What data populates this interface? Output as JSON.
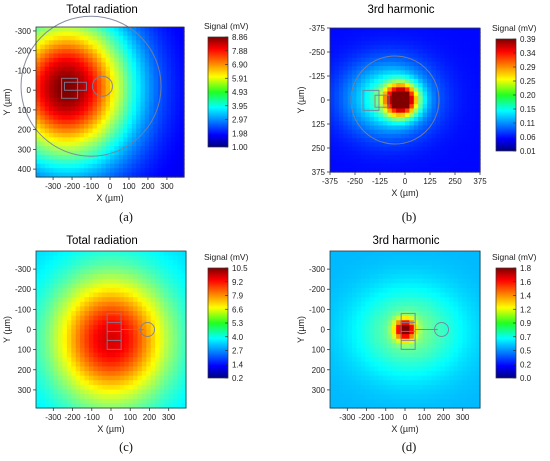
{
  "chart_data": [
    {
      "type": "heatmap",
      "panel_label": "(a)",
      "title": "Total radiation",
      "xlabel": "X (µm)",
      "ylabel": "Y (µm)",
      "xlim": [
        -390,
        390
      ],
      "ylim": [
        -320,
        440
      ],
      "y_inverted": true,
      "x_ticks": [
        "-300",
        "-200",
        "-100",
        "0",
        "100",
        "200",
        "300"
      ],
      "x_tick_values": [
        -300,
        -200,
        -100,
        0,
        100,
        200,
        300
      ],
      "y_ticks": [
        "-300",
        "-200",
        "-100",
        "0",
        "100",
        "200",
        "300",
        "400"
      ],
      "y_tick_values": [
        -300,
        -200,
        -100,
        0,
        100,
        200,
        300,
        400
      ],
      "colorbar_label": "Signal (mV)",
      "colorbar_ticks": [
        "8.86",
        "7.88",
        "6.90",
        "5.91",
        "4.93",
        "3.95",
        "2.97",
        "1.98",
        "1.00"
      ],
      "vmin": 1.0,
      "vmax": 8.86,
      "field": {
        "background": 1.8,
        "peaks": [
          {
            "x": -230,
            "y": -10,
            "amp": 7.1,
            "sx": 240,
            "sy": 260
          }
        ]
      }
    },
    {
      "type": "heatmap",
      "panel_label": "(b)",
      "title": "3rd harmonic",
      "xlabel": "X (µm)",
      "ylabel": "Y (µm)",
      "xlim": [
        -375,
        375
      ],
      "ylim": [
        -375,
        375
      ],
      "y_inverted": true,
      "x_ticks": [
        "-375",
        "-250",
        "-125",
        "0",
        "125",
        "250",
        "375"
      ],
      "x_tick_values": [
        -375,
        -250,
        -125,
        0,
        125,
        250,
        375
      ],
      "y_ticks": [
        "-375",
        "-250",
        "-125",
        "0",
        "125",
        "250",
        "375"
      ],
      "y_tick_values": [
        -375,
        -250,
        -125,
        0,
        125,
        250,
        375
      ],
      "colorbar_label": "Signal (mV)",
      "colorbar_ticks": [
        "0.39",
        "0.34",
        "0.29",
        "0.25",
        "0.20",
        "0.15",
        "0.11",
        "0.06",
        "0.01"
      ],
      "vmin": 0.01,
      "vmax": 0.39,
      "field": {
        "background": 0.06,
        "peaks": [
          {
            "x": -20,
            "y": 0,
            "amp": 0.33,
            "sx": 55,
            "sy": 55
          },
          {
            "x": -80,
            "y": -10,
            "amp": 0.12,
            "sx": 150,
            "sy": 130
          }
        ]
      }
    },
    {
      "type": "heatmap",
      "panel_label": "(c)",
      "title": "Total radiation",
      "xlabel": "X (µm)",
      "ylabel": "Y (µm)",
      "xlim": [
        -390,
        390
      ],
      "ylim": [
        -390,
        390
      ],
      "y_inverted": true,
      "x_ticks": [
        "-300",
        "-200",
        "-100",
        "0",
        "100",
        "200",
        "300"
      ],
      "x_tick_values": [
        -300,
        -200,
        -100,
        0,
        100,
        200,
        300
      ],
      "y_ticks": [
        "-300",
        "-200",
        "-100",
        "0",
        "100",
        "200",
        "300"
      ],
      "y_tick_values": [
        -300,
        -200,
        -100,
        0,
        100,
        200,
        300
      ],
      "colorbar_label": "Signal (mV)",
      "colorbar_ticks": [
        "10.5",
        "9.2",
        "7.9",
        "6.6",
        "5.3",
        "4.0",
        "2.7",
        "1.4",
        "0.2"
      ],
      "vmin": 0.2,
      "vmax": 10.5,
      "field": {
        "background": 3.6,
        "peaks": [
          {
            "x": 0,
            "y": 50,
            "amp": 6.0,
            "sx": 210,
            "sy": 220
          }
        ]
      }
    },
    {
      "type": "heatmap",
      "panel_label": "(d)",
      "title": "3rd harmonic",
      "xlabel": "X (µm)",
      "ylabel": "Y (µm)",
      "xlim": [
        -390,
        390
      ],
      "ylim": [
        -390,
        390
      ],
      "y_inverted": true,
      "x_ticks": [
        "-300",
        "-200",
        "-100",
        "0",
        "100",
        "200",
        "300"
      ],
      "x_tick_values": [
        -300,
        -200,
        -100,
        0,
        100,
        200,
        300
      ],
      "y_ticks": [
        "-300",
        "-200",
        "-100",
        "0",
        "100",
        "200",
        "300"
      ],
      "y_tick_values": [
        -300,
        -200,
        -100,
        0,
        100,
        200,
        300
      ],
      "colorbar_label": "Signal (mV)",
      "colorbar_ticks": [
        "1.8",
        "1.6",
        "1.4",
        "1.2",
        "0.9",
        "0.7",
        "0.5",
        "0.2",
        "0.0"
      ],
      "vmin": 0.0,
      "vmax": 1.8,
      "field": {
        "background": 0.55,
        "peaks": [
          {
            "x": 0,
            "y": 0,
            "amp": 1.15,
            "sx": 35,
            "sy": 35
          },
          {
            "x": 20,
            "y": 10,
            "amp": 0.35,
            "sx": 190,
            "sy": 150
          }
        ]
      }
    }
  ]
}
